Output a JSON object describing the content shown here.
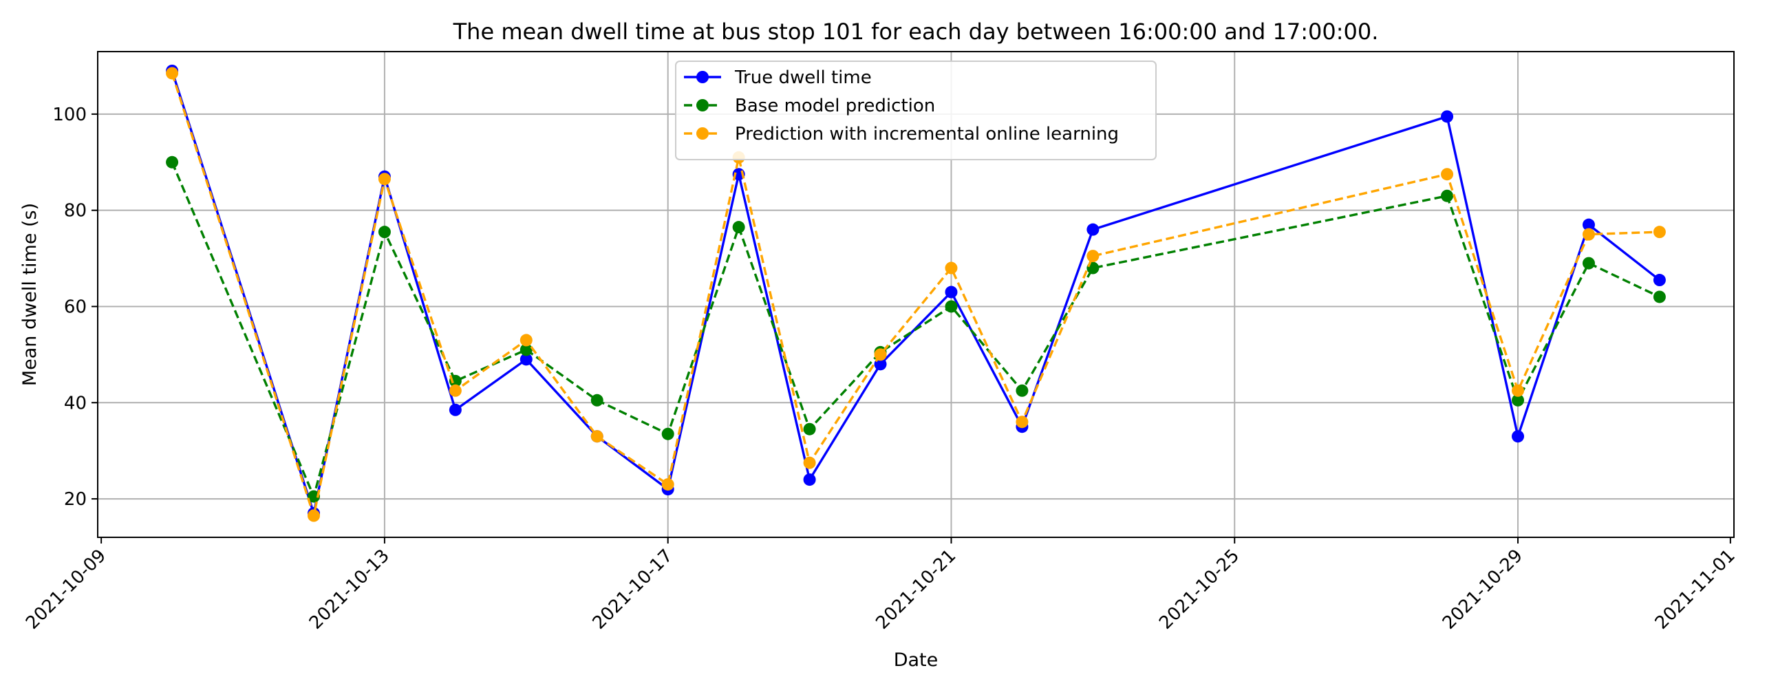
{
  "chart_data": {
    "type": "line",
    "title": "The mean dwell time at bus stop 101 for each day between 16:00:00 and 17:00:00.",
    "xlabel": "Date",
    "ylabel": "Mean dwell time (s)",
    "xlim": [
      "2021-10-09",
      "2021-11-01"
    ],
    "ylim": [
      12,
      113
    ],
    "x_ticks": [
      "2021-10-09",
      "2021-10-13",
      "2021-10-17",
      "2021-10-21",
      "2021-10-25",
      "2021-10-29",
      "2021-11-01"
    ],
    "y_ticks": [
      20,
      40,
      60,
      80,
      100
    ],
    "grid": true,
    "legend_position": "top-center",
    "x": [
      "2021-10-10",
      "2021-10-12",
      "2021-10-13",
      "2021-10-14",
      "2021-10-15",
      "2021-10-16",
      "2021-10-17",
      "2021-10-18",
      "2021-10-19",
      "2021-10-20",
      "2021-10-21",
      "2021-10-22",
      "2021-10-23",
      "2021-10-28",
      "2021-10-29",
      "2021-10-30",
      "2021-10-31"
    ],
    "series": [
      {
        "name": "True dwell time",
        "color": "#0000ff",
        "style": "solid",
        "values": [
          109,
          17,
          87,
          38.5,
          49,
          33,
          22,
          87.5,
          24,
          48,
          63,
          35,
          76,
          99.5,
          33,
          77,
          65.5
        ]
      },
      {
        "name": "Base model prediction",
        "color": "#008000",
        "style": "dashed",
        "values": [
          90,
          20.5,
          75.5,
          44.5,
          51,
          40.5,
          33.5,
          76.5,
          34.5,
          50.5,
          60,
          42.5,
          68,
          83,
          40.5,
          69,
          62
        ]
      },
      {
        "name": "Prediction with incremental online learning",
        "color": "#ffa500",
        "style": "dashed",
        "values": [
          108.5,
          16.5,
          86.5,
          42.5,
          53,
          33,
          23,
          91,
          27.5,
          50,
          68,
          36,
          70.5,
          87.5,
          42.5,
          75,
          75.5
        ]
      }
    ]
  }
}
